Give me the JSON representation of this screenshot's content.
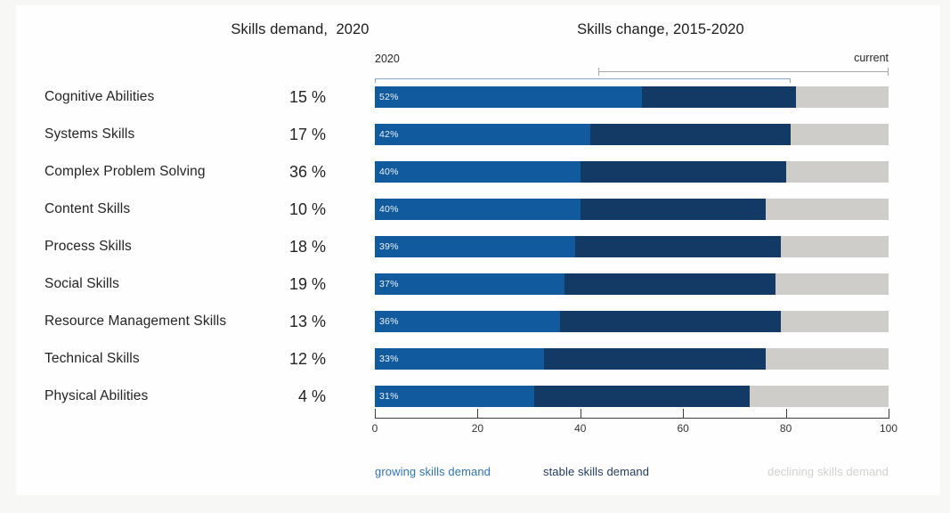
{
  "titles": {
    "left": "Skills demand,  2020",
    "right": "Skills change, 2015-2020"
  },
  "annotations": {
    "start_label": "2020",
    "end_label": "current",
    "bracket_2020_range": [
      0,
      81
    ],
    "bracket_current_range": [
      43.5,
      100
    ],
    "bracket_2020_color": "#84a7cb",
    "bracket_current_color": "#a9a8a6"
  },
  "legend": [
    {
      "label": "growing skills demand",
      "color": "#2f74b4"
    },
    {
      "label": "stable skills demand",
      "color": "#1e3a5f"
    },
    {
      "label": "declining skills demand",
      "color": "#d3d1ce"
    }
  ],
  "chart_data": {
    "type": "bar",
    "stacked": true,
    "orientation": "horizontal",
    "title_left_column": "Skills demand, 2020",
    "title_bars": "Skills change, 2015-2020",
    "categories": [
      "Cognitive Abilities",
      "Systems Skills",
      "Complex Problem Solving",
      "Content Skills",
      "Process Skills",
      "Social Skills",
      "Resource Management Skills",
      "Technical Skills",
      "Physical Abilities"
    ],
    "demand_2020": [
      "15 %",
      "17 %",
      "36 %",
      "10 %",
      "18 %",
      "19 %",
      "13 %",
      "12 %",
      "4 %"
    ],
    "series": [
      {
        "name": "growing skills demand",
        "color": "#115a9e",
        "values": [
          52,
          42,
          40,
          40,
          39,
          37,
          36,
          33,
          31
        ]
      },
      {
        "name": "stable skills demand",
        "color": "#133a64",
        "values": [
          30,
          39,
          40,
          36,
          40,
          41,
          43,
          43,
          42
        ]
      },
      {
        "name": "declining skills demand",
        "color": "#cecdc9",
        "values": [
          18,
          19,
          20,
          24,
          21,
          22,
          21,
          24,
          27
        ]
      }
    ],
    "bar_labels": [
      "52%",
      "42%",
      "40%",
      "40%",
      "39%",
      "37%",
      "36%",
      "33%",
      "31%"
    ],
    "xlim": [
      0,
      100
    ],
    "x_ticks": [
      0,
      20,
      40,
      60,
      80,
      100
    ],
    "grid": false,
    "legend_position": "bottom"
  }
}
